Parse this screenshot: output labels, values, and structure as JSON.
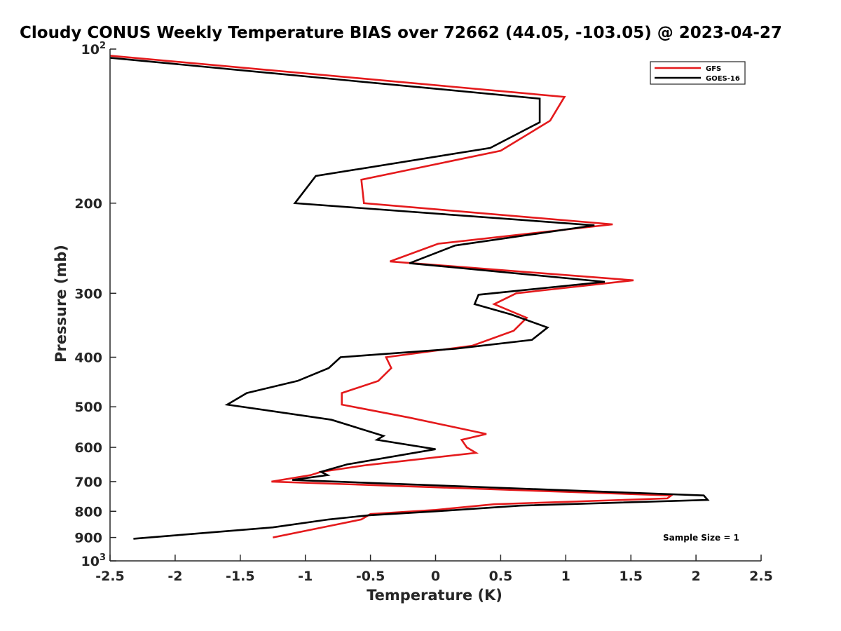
{
  "chart_data": {
    "type": "line",
    "title": "Cloudy CONUS Weekly Temperature BIAS over 72662 (44.05, -103.05) @ 2023-04-27",
    "xlabel": "Temperature (K)",
    "ylabel": "Pressure (mb)",
    "xlim": [
      -2.5,
      2.5
    ],
    "ylim": [
      1000,
      100
    ],
    "yscale": "log",
    "grid": false,
    "legend_position": "top-right",
    "x_ticks": [
      "-2.5",
      "-2",
      "-1.5",
      "-1",
      "-0.5",
      "0",
      "0.5",
      "1",
      "1.5",
      "2",
      "2.5"
    ],
    "x_tick_values": [
      -2.5,
      -2,
      -1.5,
      -1,
      -0.5,
      0,
      0.5,
      1,
      1.5,
      2,
      2.5
    ],
    "y_ticks": [
      {
        "value": 100,
        "label": "10",
        "sup": "2"
      },
      {
        "value": 200,
        "label": "200",
        "sup": ""
      },
      {
        "value": 300,
        "label": "300",
        "sup": ""
      },
      {
        "value": 400,
        "label": "400",
        "sup": ""
      },
      {
        "value": 500,
        "label": "500",
        "sup": ""
      },
      {
        "value": 600,
        "label": "600",
        "sup": ""
      },
      {
        "value": 700,
        "label": "700",
        "sup": ""
      },
      {
        "value": 800,
        "label": "800",
        "sup": ""
      },
      {
        "value": 900,
        "label": "900",
        "sup": ""
      },
      {
        "value": 1000,
        "label": "10",
        "sup": "3"
      }
    ],
    "annotation": "Sample Size = 1",
    "series": [
      {
        "name": "GFS",
        "color": "#e41a1c",
        "points": [
          {
            "p": 103,
            "t": -2.5
          },
          {
            "p": 124,
            "t": 0.99
          },
          {
            "p": 138,
            "t": 0.88
          },
          {
            "p": 158,
            "t": 0.5
          },
          {
            "p": 180,
            "t": -0.57
          },
          {
            "p": 200,
            "t": -0.55
          },
          {
            "p": 220,
            "t": 1.36
          },
          {
            "p": 240,
            "t": 0.02
          },
          {
            "p": 260,
            "t": -0.35
          },
          {
            "p": 283,
            "t": 1.52
          },
          {
            "p": 300,
            "t": 0.62
          },
          {
            "p": 315,
            "t": 0.45
          },
          {
            "p": 335,
            "t": 0.7
          },
          {
            "p": 355,
            "t": 0.6
          },
          {
            "p": 380,
            "t": 0.28
          },
          {
            "p": 400,
            "t": -0.38
          },
          {
            "p": 420,
            "t": -0.34
          },
          {
            "p": 445,
            "t": -0.44
          },
          {
            "p": 470,
            "t": -0.72
          },
          {
            "p": 495,
            "t": -0.72
          },
          {
            "p": 525,
            "t": -0.2
          },
          {
            "p": 565,
            "t": 0.39
          },
          {
            "p": 580,
            "t": 0.2
          },
          {
            "p": 600,
            "t": 0.24
          },
          {
            "p": 615,
            "t": 0.31
          },
          {
            "p": 650,
            "t": -0.53
          },
          {
            "p": 670,
            "t": -0.88
          },
          {
            "p": 680,
            "t": -0.96
          },
          {
            "p": 700,
            "t": -1.26
          },
          {
            "p": 745,
            "t": 1.81
          },
          {
            "p": 755,
            "t": 1.78
          },
          {
            "p": 775,
            "t": 0.45
          },
          {
            "p": 795,
            "t": 0.0
          },
          {
            "p": 810,
            "t": -0.5
          },
          {
            "p": 830,
            "t": -0.57
          },
          {
            "p": 850,
            "t": -0.77
          },
          {
            "p": 900,
            "t": -1.25
          }
        ]
      },
      {
        "name": "GOES-16",
        "color": "#000000",
        "points": [
          {
            "p": 104,
            "t": -2.5
          },
          {
            "p": 125,
            "t": 0.8
          },
          {
            "p": 139,
            "t": 0.8
          },
          {
            "p": 156,
            "t": 0.42
          },
          {
            "p": 177,
            "t": -0.92
          },
          {
            "p": 200,
            "t": -1.08
          },
          {
            "p": 221,
            "t": 1.22
          },
          {
            "p": 242,
            "t": 0.15
          },
          {
            "p": 262,
            "t": -0.2
          },
          {
            "p": 285,
            "t": 1.3
          },
          {
            "p": 302,
            "t": 0.33
          },
          {
            "p": 315,
            "t": 0.3
          },
          {
            "p": 330,
            "t": 0.58
          },
          {
            "p": 350,
            "t": 0.86
          },
          {
            "p": 370,
            "t": 0.74
          },
          {
            "p": 385,
            "t": 0.15
          },
          {
            "p": 400,
            "t": -0.73
          },
          {
            "p": 420,
            "t": -0.82
          },
          {
            "p": 445,
            "t": -1.06
          },
          {
            "p": 470,
            "t": -1.45
          },
          {
            "p": 495,
            "t": -1.6
          },
          {
            "p": 530,
            "t": -0.8
          },
          {
            "p": 570,
            "t": -0.4
          },
          {
            "p": 580,
            "t": -0.45
          },
          {
            "p": 605,
            "t": 0.0
          },
          {
            "p": 648,
            "t": -0.68
          },
          {
            "p": 670,
            "t": -0.88
          },
          {
            "p": 680,
            "t": -0.83
          },
          {
            "p": 695,
            "t": -1.1
          },
          {
            "p": 745,
            "t": 2.06
          },
          {
            "p": 760,
            "t": 2.09
          },
          {
            "p": 780,
            "t": 0.65
          },
          {
            "p": 800,
            "t": 0.0
          },
          {
            "p": 815,
            "t": -0.52
          },
          {
            "p": 830,
            "t": -0.82
          },
          {
            "p": 860,
            "t": -1.25
          },
          {
            "p": 905,
            "t": -2.32
          }
        ]
      }
    ]
  }
}
